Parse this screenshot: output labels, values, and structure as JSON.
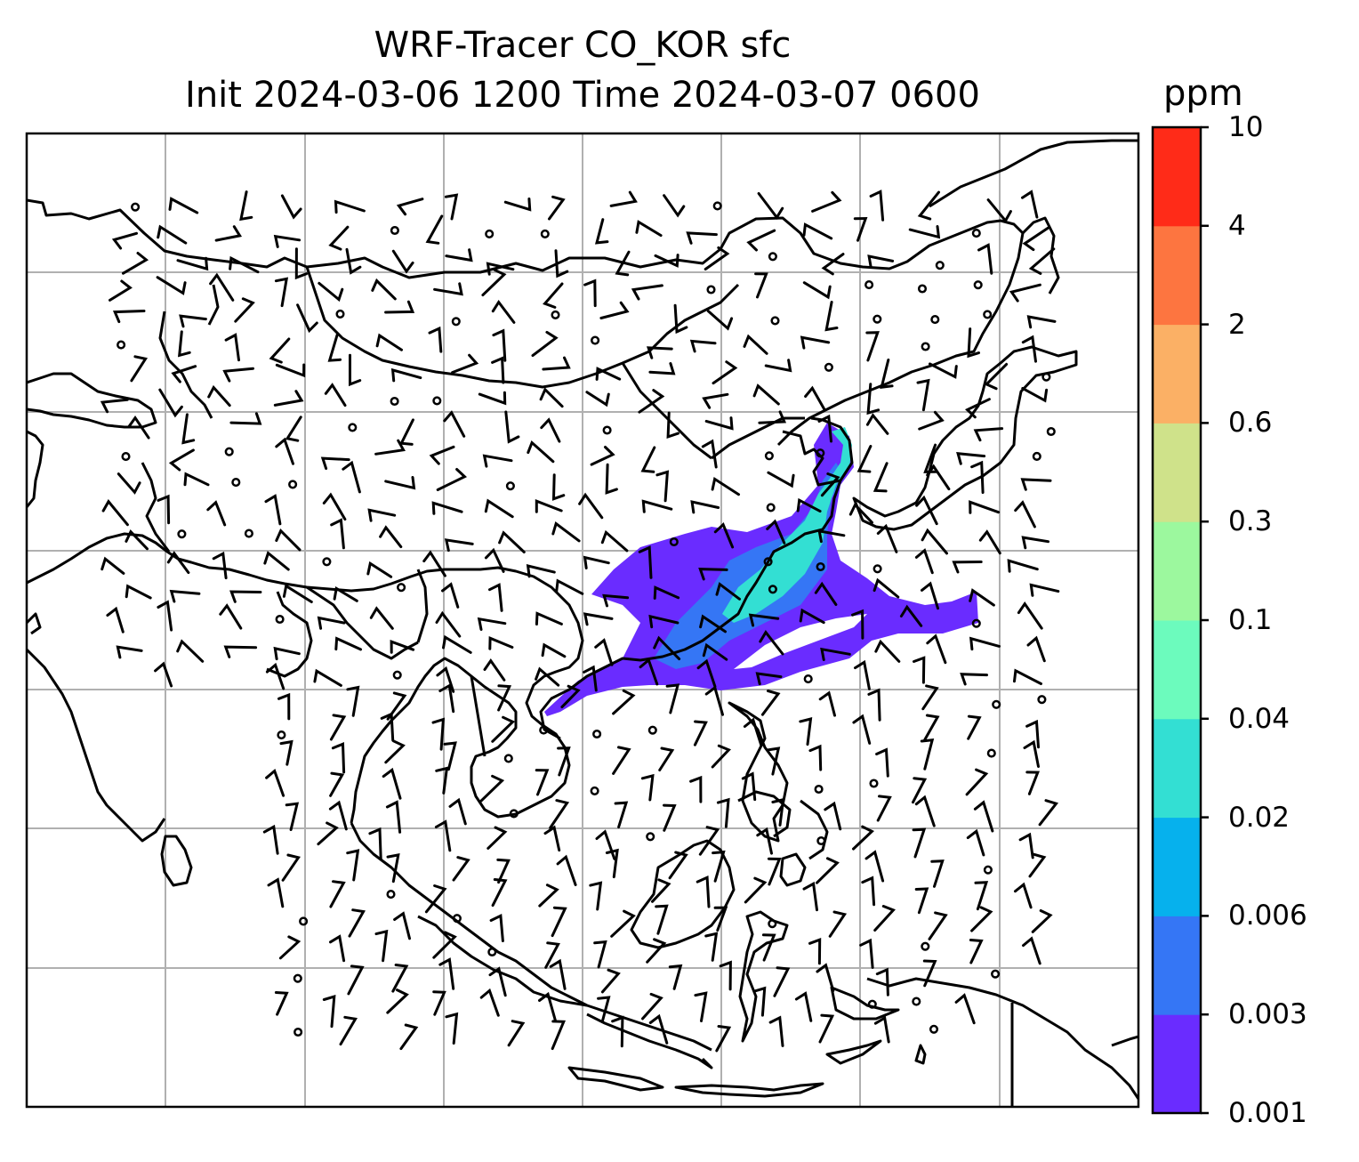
{
  "title": {
    "line1": "WRF-Tracer CO_KOR sfc",
    "line2": "Init 2024-03-06 1200 Time 2024-03-07 0600"
  },
  "colorbar": {
    "unit": "ppm",
    "levels": [
      "0.001",
      "0.003",
      "0.006",
      "0.02",
      "0.04",
      "0.1",
      "0.3",
      "0.6",
      "2",
      "4",
      "10"
    ],
    "colors": [
      "#6a2cff",
      "#3576f5",
      "#06b1ed",
      "#33dfd3",
      "#6cfbbd",
      "#9cf89e",
      "#cfe28a",
      "#fbb065",
      "#fd7540",
      "#ff2b18"
    ]
  },
  "map": {
    "projection": "PlateCarree",
    "gridlines": true,
    "coastlines": true,
    "wind_barbs": true,
    "plume_color_main": "#6a2cff",
    "plume_color_mid": "#3576f5",
    "plume_color_core": "#33dfd3"
  }
}
